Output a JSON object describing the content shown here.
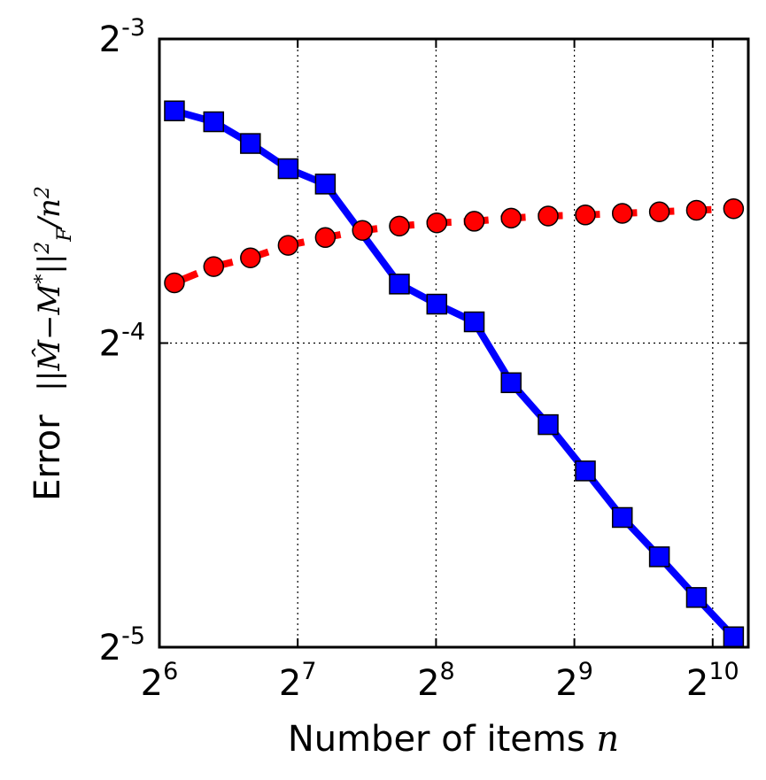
{
  "chart_data": {
    "type": "line",
    "title": "",
    "xlabel": "Number of items",
    "xlabel_var": "n",
    "ylabel": "Error",
    "ylabel_math": "||Ŵ−M*||²_F / n²",
    "x_scale": "log2",
    "y_scale": "log2",
    "xlim": [
      64,
      1224
    ],
    "ylim": [
      0.03125,
      0.125
    ],
    "x_ticks": [
      {
        "value": 64,
        "base": "2",
        "exp": "6"
      },
      {
        "value": 128,
        "base": "2",
        "exp": "7"
      },
      {
        "value": 256,
        "base": "2",
        "exp": "8"
      },
      {
        "value": 512,
        "base": "2",
        "exp": "9"
      },
      {
        "value": 1024,
        "base": "2",
        "exp": "10"
      }
    ],
    "y_ticks": [
      {
        "value": 0.125,
        "base": "2",
        "exp": "-3"
      },
      {
        "value": 0.0625,
        "base": "2",
        "exp": "-4"
      },
      {
        "value": 0.03125,
        "base": "2",
        "exp": "-5"
      }
    ],
    "grid": true,
    "x": [
      69,
      84,
      101,
      122,
      147,
      177,
      213,
      257,
      310,
      373,
      449,
      541,
      651,
      784,
      944,
      1137
    ],
    "series": [
      {
        "color": "#0000ff",
        "marker": "square",
        "line_style": "solid",
        "values": [
          0.1061,
          0.1035,
          0.0985,
          0.093,
          0.0898,
          null,
          0.0715,
          0.0683,
          0.0656,
          0.0571,
          0.0519,
          0.0467,
          0.042,
          0.0384,
          0.035,
          0.032
        ]
      },
      {
        "color": "#ff0000",
        "marker": "circle",
        "line_style": "dashed",
        "values": [
          0.0717,
          0.0744,
          0.0759,
          0.0781,
          0.0795,
          0.0808,
          0.0816,
          0.0822,
          0.0825,
          0.0831,
          0.0835,
          0.0837,
          0.084,
          0.0843,
          0.0846,
          0.0849
        ]
      }
    ]
  }
}
